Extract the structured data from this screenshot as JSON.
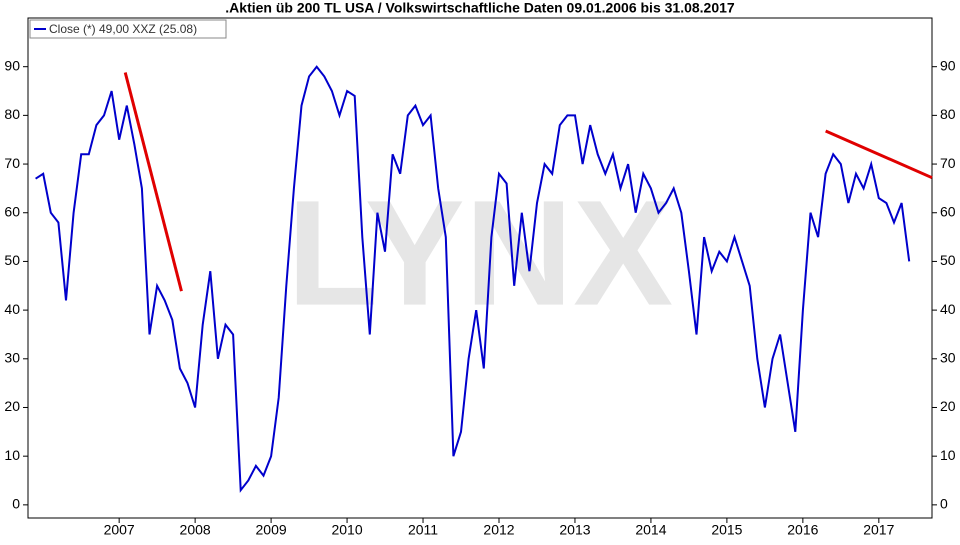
{
  "chart_data": {
    "type": "line",
    "title": ".Aktien üb 200 TL USA / Volkswirtschaftliche Daten 09.01.2006 bis 31.08.2017",
    "watermark": "LYNX",
    "x": [
      2005.9,
      2006.0,
      2006.1,
      2006.2,
      2006.3,
      2006.4,
      2006.5,
      2006.6,
      2006.7,
      2006.8,
      2006.9,
      2007.0,
      2007.1,
      2007.2,
      2007.3,
      2007.4,
      2007.5,
      2007.6,
      2007.7,
      2007.8,
      2007.9,
      2008.0,
      2008.1,
      2008.2,
      2008.3,
      2008.4,
      2008.5,
      2008.6,
      2008.7,
      2008.8,
      2008.9,
      2009.0,
      2009.1,
      2009.2,
      2009.3,
      2009.4,
      2009.5,
      2009.6,
      2009.7,
      2009.8,
      2009.9,
      2010.0,
      2010.1,
      2010.2,
      2010.3,
      2010.4,
      2010.5,
      2010.6,
      2010.7,
      2010.8,
      2010.9,
      2011.0,
      2011.1,
      2011.2,
      2011.3,
      2011.4,
      2011.5,
      2011.6,
      2011.7,
      2011.8,
      2011.9,
      2012.0,
      2012.1,
      2012.2,
      2012.3,
      2012.4,
      2012.5,
      2012.6,
      2012.7,
      2012.8,
      2012.9,
      2013.0,
      2013.1,
      2013.2,
      2013.3,
      2013.4,
      2013.5,
      2013.6,
      2013.7,
      2013.8,
      2013.9,
      2014.0,
      2014.1,
      2014.2,
      2014.3,
      2014.4,
      2014.5,
      2014.6,
      2014.7,
      2014.8,
      2014.9,
      2015.0,
      2015.1,
      2015.2,
      2015.3,
      2015.4,
      2015.5,
      2015.6,
      2015.7,
      2015.8,
      2015.9,
      2016.0,
      2016.1,
      2016.2,
      2016.3,
      2016.4,
      2016.5,
      2016.6,
      2016.7,
      2016.8,
      2016.9,
      2017.0,
      2017.1,
      2017.2,
      2017.3,
      2017.4
    ],
    "series": [
      {
        "name": "Close (*) 49,00 XXZ (25.08)",
        "color": "#0000cc",
        "values": [
          67,
          68,
          60,
          58,
          42,
          60,
          72,
          72,
          78,
          80,
          85,
          75,
          82,
          74,
          65,
          35,
          45,
          42,
          38,
          28,
          25,
          20,
          37,
          48,
          30,
          37,
          35,
          3,
          5,
          8,
          6,
          10,
          22,
          45,
          65,
          82,
          88,
          90,
          88,
          85,
          80,
          85,
          84,
          55,
          35,
          60,
          52,
          72,
          68,
          80,
          82,
          78,
          80,
          65,
          55,
          10,
          15,
          30,
          40,
          28,
          55,
          68,
          66,
          45,
          60,
          48,
          62,
          70,
          68,
          78,
          80,
          80,
          70,
          78,
          72,
          68,
          72,
          65,
          70,
          60,
          68,
          65,
          60,
          62,
          65,
          60,
          48,
          35,
          55,
          48,
          52,
          50,
          55,
          50,
          45,
          30,
          20,
          30,
          35,
          25,
          15,
          40,
          60,
          55,
          68,
          72,
          70,
          62,
          68,
          65,
          70,
          63,
          62,
          58,
          62,
          50
        ]
      }
    ],
    "trendlines": [
      {
        "x": [
          2007.08,
          2007.82
        ],
        "y": [
          88.8,
          43.9
        ],
        "color": "#e00000"
      },
      {
        "x": [
          2016.3,
          2017.7
        ],
        "y": [
          76.8,
          67.2
        ],
        "color": "#e00000"
      }
    ],
    "xlim": [
      2005.8,
      2017.7
    ],
    "ylim": [
      -2.7,
      100
    ],
    "xticks": [
      2007,
      2008,
      2009,
      2010,
      2011,
      2012,
      2013,
      2014,
      2015,
      2016,
      2017
    ],
    "yticks": [
      0,
      10,
      20,
      30,
      40,
      50,
      60,
      70,
      80,
      90
    ]
  }
}
